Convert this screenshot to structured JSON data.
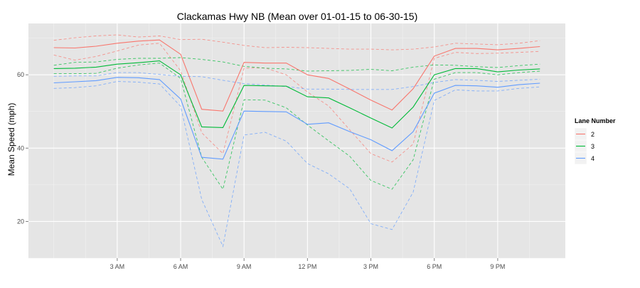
{
  "chart_data": {
    "type": "line",
    "title": "Clackamas Hwy NB (Mean over 01-01-15 to 06-30-15)",
    "xlabel": "",
    "ylabel": "Mean Speed (mph)",
    "x": [
      0,
      1,
      2,
      3,
      4,
      5,
      6,
      7,
      8,
      9,
      10,
      11,
      12,
      13,
      14,
      15,
      16,
      17,
      18,
      19,
      20,
      21,
      22,
      23
    ],
    "x_ticks": [
      {
        "x": 3,
        "label": "3 AM"
      },
      {
        "x": 6,
        "label": "6 AM"
      },
      {
        "x": 9,
        "label": "9 AM"
      },
      {
        "x": 12,
        "label": "12 PM"
      },
      {
        "x": 15,
        "label": "3 PM"
      },
      {
        "x": 18,
        "label": "6 PM"
      },
      {
        "x": 21,
        "label": "9 PM"
      }
    ],
    "y_ticks": [
      20,
      40,
      60
    ],
    "xlim": [
      -1.2,
      24.2
    ],
    "ylim": [
      10,
      74
    ],
    "grid": true,
    "legend": {
      "title": "Lane Number",
      "position": "right"
    },
    "series": [
      {
        "name": "2",
        "color": "#f8766d",
        "values": [
          67.4,
          67.3,
          67.8,
          68.6,
          69.2,
          69.5,
          65.6,
          50.6,
          50.1,
          63.4,
          63.2,
          63.2,
          60.0,
          59.0,
          56.1,
          53.1,
          50.4,
          56.2,
          65.1,
          67.2,
          67.2,
          66.8,
          67.2,
          67.7
        ],
        "upper": [
          69.4,
          70.1,
          70.6,
          70.9,
          70.3,
          70.6,
          69.6,
          69.7,
          68.9,
          68.0,
          67.4,
          67.5,
          67.4,
          67.2,
          67.0,
          67.0,
          66.8,
          67.0,
          67.6,
          68.6,
          68.4,
          68.2,
          68.6,
          69.3
        ],
        "lower": [
          65.4,
          64.0,
          65.0,
          66.5,
          68.1,
          68.6,
          61.1,
          44.2,
          38.5,
          61.8,
          61.9,
          60.0,
          55.3,
          51.5,
          45.0,
          38.5,
          36.2,
          41.1,
          64.5,
          66.1,
          65.8,
          65.9,
          66.1,
          66.4
        ]
      },
      {
        "name": "3",
        "color": "#00ba38",
        "values": [
          61.7,
          61.8,
          62.1,
          62.9,
          63.3,
          63.8,
          60.0,
          45.8,
          45.6,
          57.1,
          57.0,
          56.9,
          54.0,
          53.7,
          51.0,
          48.2,
          45.5,
          51.2,
          60.0,
          61.7,
          61.7,
          60.8,
          61.3,
          61.6
        ],
        "upper": [
          62.6,
          63.4,
          63.5,
          64.2,
          64.5,
          64.5,
          64.7,
          64.2,
          63.5,
          62.3,
          61.8,
          61.6,
          61.0,
          61.1,
          61.2,
          61.5,
          61.1,
          62.1,
          62.7,
          62.6,
          62.2,
          62.0,
          62.5,
          62.9
        ],
        "lower": [
          60.3,
          60.3,
          60.4,
          61.8,
          62.7,
          63.2,
          59.0,
          37.5,
          28.8,
          53.2,
          53.1,
          51.0,
          46.3,
          42.0,
          37.8,
          31.2,
          28.8,
          36.8,
          58.8,
          60.6,
          60.6,
          60.0,
          60.6,
          61.0
        ]
      },
      {
        "name": "4",
        "color": "#619cff",
        "values": [
          57.8,
          58.1,
          58.4,
          59.3,
          59.2,
          58.7,
          53.4,
          37.5,
          37.0,
          50.1,
          50.0,
          49.9,
          46.5,
          46.9,
          44.5,
          42.3,
          39.3,
          44.5,
          55.0,
          57.1,
          57.0,
          56.6,
          57.3,
          57.7
        ],
        "upper": [
          59.6,
          59.7,
          59.7,
          60.6,
          60.6,
          60.1,
          59.6,
          59.5,
          58.5,
          57.6,
          57.2,
          56.8,
          56.1,
          56.1,
          56.0,
          56.0,
          56.0,
          56.8,
          57.9,
          58.7,
          58.5,
          58.2,
          58.5,
          58.8
        ],
        "lower": [
          56.3,
          56.5,
          57.0,
          58.2,
          58.0,
          57.5,
          51.4,
          26.0,
          13.2,
          43.6,
          44.3,
          41.9,
          35.8,
          33.0,
          28.9,
          19.4,
          17.8,
          28.0,
          53.0,
          55.9,
          55.6,
          55.6,
          56.3,
          56.7
        ]
      }
    ]
  }
}
